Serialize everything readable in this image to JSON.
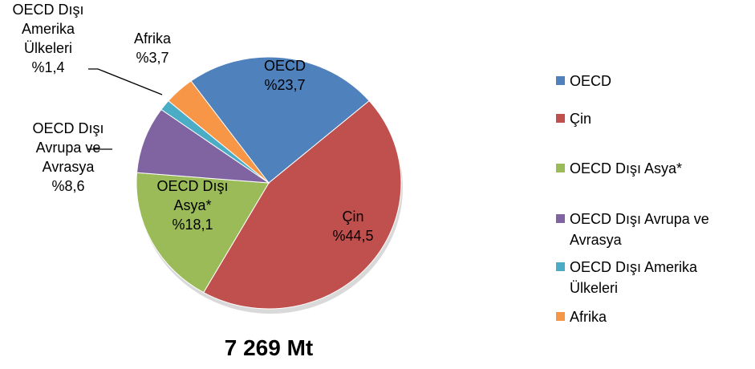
{
  "chart_data": {
    "type": "pie",
    "subtitle": "7 269 Mt",
    "categories": [
      "OECD",
      "Çin",
      "OECD Dışı Asya*",
      "OECD Dışı Avrupa ve Avrasya",
      "OECD Dışı Amerika Ülkeleri",
      "Afrika"
    ],
    "values": [
      23.7,
      44.5,
      18.1,
      8.6,
      1.4,
      3.7
    ],
    "value_labels": [
      "%23,7",
      "%44,5",
      "%18,1",
      "%8,6",
      "%1,4",
      "%3,7"
    ],
    "colors": [
      "#4f81bd",
      "#c0504d",
      "#9bbb59",
      "#8064a2",
      "#4bacc6",
      "#f79646"
    ],
    "legend": "right"
  }
}
